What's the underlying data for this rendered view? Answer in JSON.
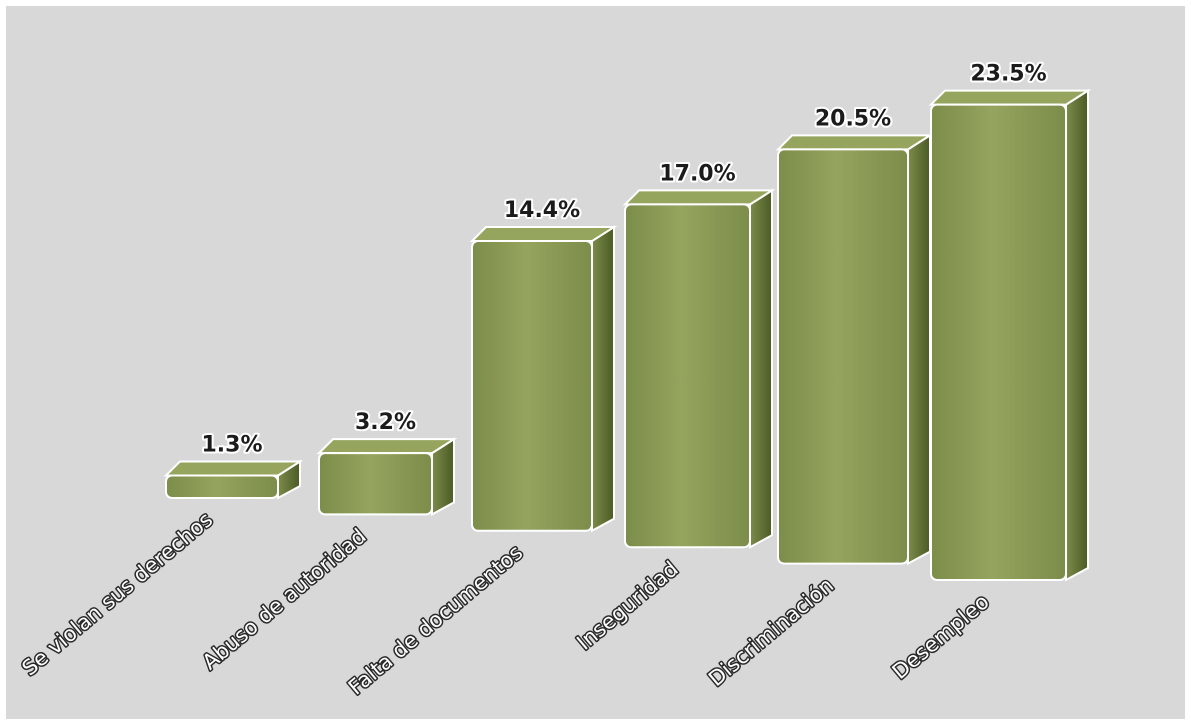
{
  "chart_data": {
    "type": "bar",
    "categories": [
      "Se violan sus derechos",
      "Abuso de autoridad",
      "Falta de documentos",
      "Inseguridad",
      "Discriminación",
      "Desempleo"
    ],
    "values": [
      1.3,
      3.2,
      14.4,
      17.0,
      20.5,
      23.5
    ],
    "value_labels": [
      "1.3%",
      "3.2%",
      "14.4%",
      "17.0%",
      "20.5%",
      "23.5%"
    ],
    "title": "",
    "xlabel": "",
    "ylabel": "",
    "ylim": [
      0,
      25
    ],
    "grid": false,
    "legend": "none",
    "colors": {
      "background": "#d8d8d8",
      "bar": "#7c8c4a",
      "bar_top": "#95a55e",
      "bar_side": "#4b5a24",
      "bar_outline": "#ffffff"
    }
  }
}
